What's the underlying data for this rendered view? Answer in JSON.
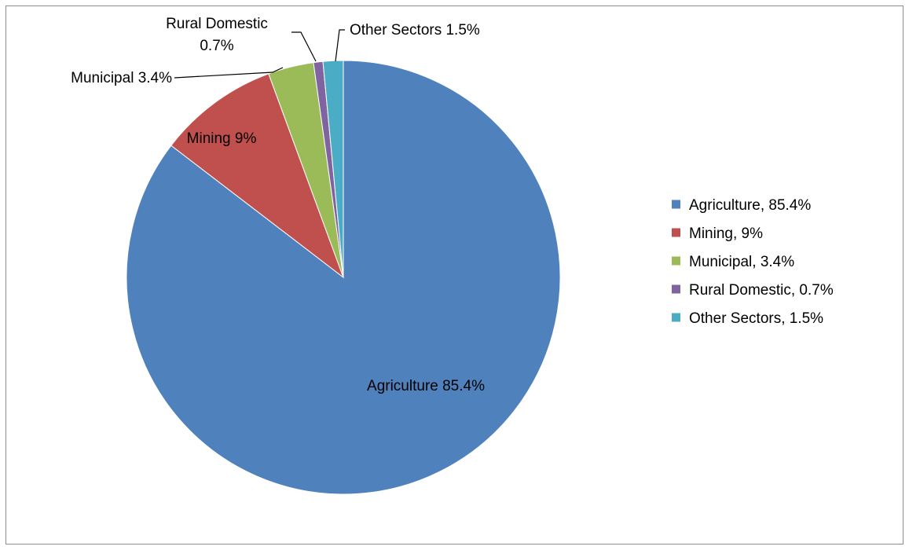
{
  "chart_data": {
    "type": "pie",
    "title": "",
    "start_angle_deg": 90,
    "direction": "clockwise",
    "slices": [
      {
        "name": "Agriculture",
        "value": 85.4,
        "color": "#4F81BD",
        "label": "Agriculture 85.4%",
        "legend": "Agriculture, 85.4%"
      },
      {
        "name": "Mining",
        "value": 9,
        "color": "#C0504D",
        "label": "Mining 9%",
        "legend": "Mining, 9%"
      },
      {
        "name": "Municipal",
        "value": 3.4,
        "color": "#9BBB59",
        "label": "Municipal 3.4%",
        "legend": "Municipal, 3.4%"
      },
      {
        "name": "Rural Domestic",
        "value": 0.7,
        "color": "#8064A2",
        "label": "Rural Domestic\n0.7%",
        "legend": "Rural Domestic,  0.7%"
      },
      {
        "name": "Other Sectors",
        "value": 1.5,
        "color": "#4BACC6",
        "label": "Other Sectors 1.5%",
        "legend": "Other Sectors, 1.5%"
      }
    ],
    "legend_position": "right"
  }
}
